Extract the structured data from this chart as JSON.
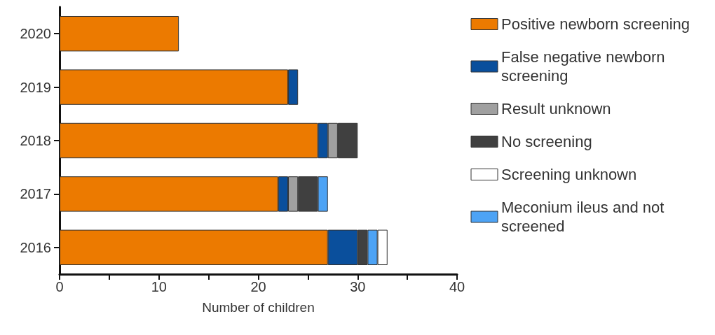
{
  "chart_data": {
    "type": "bar",
    "orientation": "horizontal",
    "stacked": true,
    "categories": [
      "2020",
      "2019",
      "2018",
      "2017",
      "2016"
    ],
    "xlabel": "Number of children",
    "xlim": [
      0,
      40
    ],
    "xticks": [
      0,
      {
        "value": 5,
        "label": null
      },
      10,
      {
        "value": 15,
        "label": null
      },
      20,
      {
        "value": 25,
        "label": null
      },
      30,
      {
        "value": 35,
        "label": null
      },
      40
    ],
    "grid": false,
    "legend": "right",
    "series": [
      {
        "name": "Positive newborn screening",
        "color": "#ec7a00",
        "values": [
          12,
          23,
          26,
          22,
          27
        ]
      },
      {
        "name": "False negative newborn screening",
        "color": "#0a4f9c",
        "values": [
          null,
          1,
          1,
          1,
          3
        ]
      },
      {
        "name": "Result unknown",
        "color": "#a0a0a0",
        "values": [
          null,
          null,
          1,
          1,
          null
        ]
      },
      {
        "name": "No screening",
        "color": "#404040",
        "values": [
          null,
          null,
          2,
          2,
          1
        ]
      },
      {
        "name": "Meconium ileus and not screened",
        "color": "#4da3f5",
        "values": [
          null,
          null,
          null,
          1,
          1
        ]
      },
      {
        "name": "Screening unknown",
        "color": "#ffffff",
        "values": [
          null,
          null,
          null,
          null,
          1
        ]
      }
    ]
  }
}
